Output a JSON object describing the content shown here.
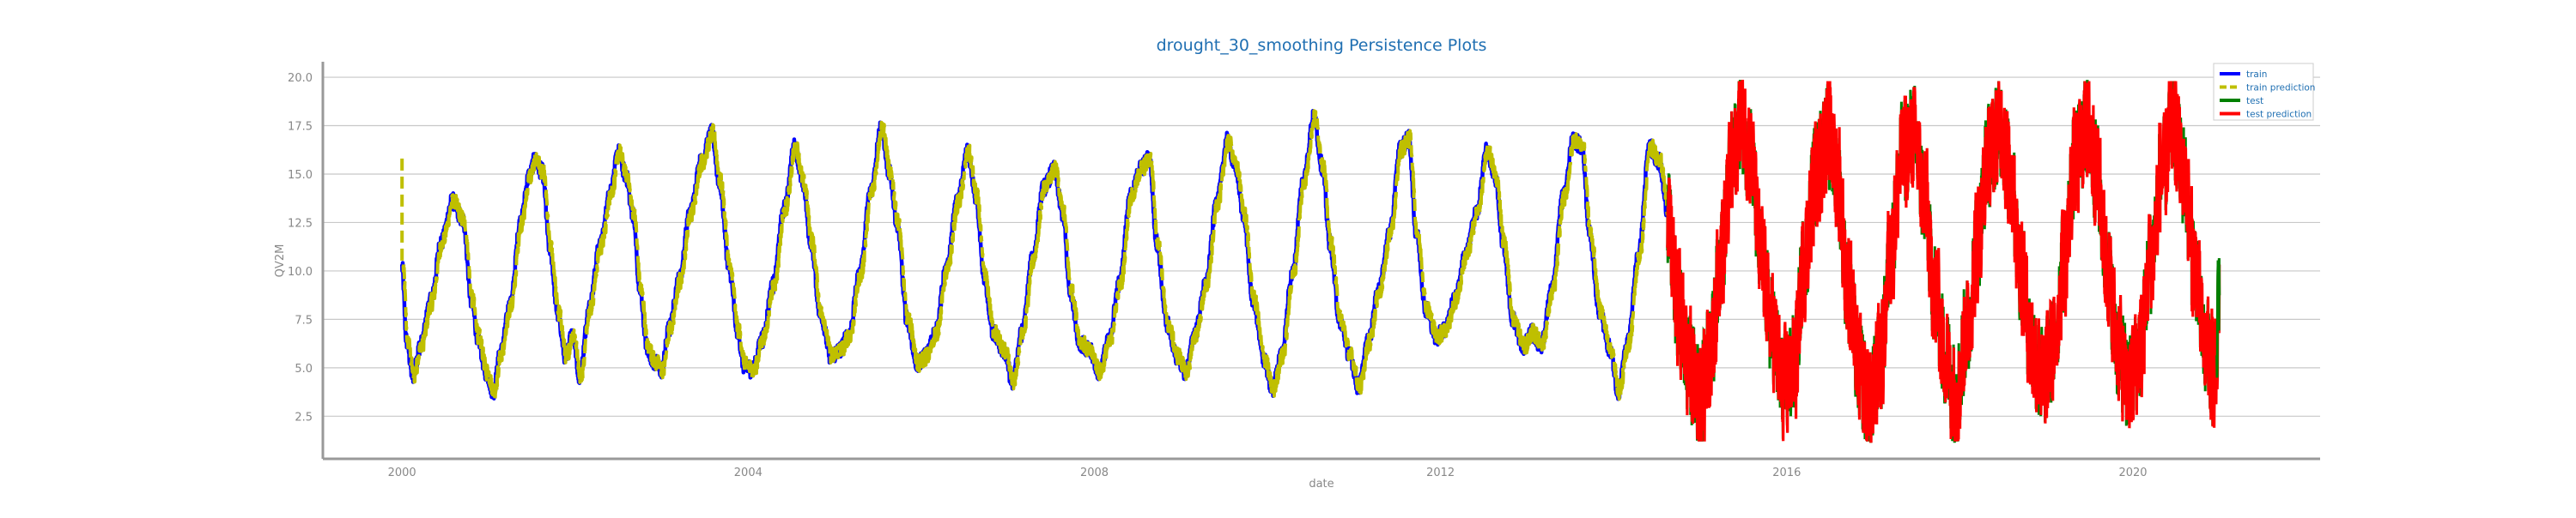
{
  "chart_data": {
    "type": "line",
    "title": "drought_30_smoothing Persistence Plots",
    "xlabel": "date",
    "ylabel": "QV2M",
    "xlim": [
      "1999-02-01",
      "2022-03-01"
    ],
    "ylim": [
      0.3,
      20.8
    ],
    "x_ticks": [
      "2000",
      "2004",
      "2008",
      "2012",
      "2016",
      "2020"
    ],
    "y_ticks": [
      "2.5",
      "5.0",
      "7.5",
      "10.0",
      "12.5",
      "15.0",
      "17.5",
      "20.0"
    ],
    "grid": "horizontal",
    "legend_position": "top-right",
    "train_range": [
      "2000-01-01",
      "2014-08-15"
    ],
    "test_range": [
      "2014-08-15",
      "2020-12-31"
    ],
    "series": [
      {
        "name": "train",
        "color": "#0000ff",
        "style": "solid",
        "points": [
          [
            "2000-01-01",
            10.2
          ],
          [
            "2000-01-20",
            6.4
          ],
          [
            "2000-02-15",
            4.6
          ],
          [
            "2000-03-20",
            6.2
          ],
          [
            "2000-05-01",
            8.4
          ],
          [
            "2000-06-15",
            11.5
          ],
          [
            "2000-08-01",
            13.6
          ],
          [
            "2000-09-15",
            12.6
          ],
          [
            "2000-10-20",
            8.5
          ],
          [
            "2000-11-15",
            6.6
          ],
          [
            "2000-12-20",
            4.8
          ],
          [
            "2001-01-20",
            3.8
          ],
          [
            "2001-02-20",
            5.8
          ],
          [
            "2001-04-01",
            8.2
          ],
          [
            "2001-05-15",
            12.5
          ],
          [
            "2001-06-20",
            14.9
          ],
          [
            "2001-07-15",
            15.7
          ],
          [
            "2001-08-15",
            15.1
          ],
          [
            "2001-09-15",
            11.2
          ],
          [
            "2001-10-20",
            7.8
          ],
          [
            "2001-11-20",
            5.6
          ],
          [
            "2001-12-20",
            6.8
          ],
          [
            "2002-01-20",
            4.6
          ],
          [
            "2002-03-01",
            8.1
          ],
          [
            "2002-04-15",
            11.3
          ],
          [
            "2002-06-01",
            14.2
          ],
          [
            "2002-07-01",
            16.1
          ],
          [
            "2002-08-01",
            15.0
          ],
          [
            "2002-09-01",
            13.0
          ],
          [
            "2002-10-01",
            9.0
          ],
          [
            "2002-11-01",
            6.0
          ],
          [
            "2002-12-01",
            5.3
          ],
          [
            "2003-01-01",
            4.9
          ],
          [
            "2003-02-01",
            7.0
          ],
          [
            "2003-03-15",
            9.5
          ],
          [
            "2003-05-01",
            13.0
          ],
          [
            "2003-06-15",
            15.6
          ],
          [
            "2003-08-01",
            17.1
          ],
          [
            "2003-09-01",
            14.6
          ],
          [
            "2003-10-15",
            10.0
          ],
          [
            "2003-11-15",
            7.0
          ],
          [
            "2003-12-15",
            5.1
          ],
          [
            "2004-01-20",
            4.9
          ],
          [
            "2004-03-01",
            6.5
          ],
          [
            "2004-04-15",
            9.3
          ],
          [
            "2004-06-01",
            13.2
          ],
          [
            "2004-07-15",
            16.4
          ],
          [
            "2004-08-20",
            14.5
          ],
          [
            "2004-09-20",
            11.6
          ],
          [
            "2004-11-01",
            7.8
          ],
          [
            "2004-12-15",
            5.6
          ],
          [
            "2005-01-20",
            5.9
          ],
          [
            "2005-03-01",
            6.7
          ],
          [
            "2005-04-15",
            9.8
          ],
          [
            "2005-06-01",
            14.1
          ],
          [
            "2005-07-15",
            17.4
          ],
          [
            "2005-08-20",
            15.0
          ],
          [
            "2005-09-20",
            12.5
          ],
          [
            "2005-11-01",
            7.5
          ],
          [
            "2005-12-15",
            5.2
          ],
          [
            "2006-01-20",
            5.6
          ],
          [
            "2006-03-01",
            6.8
          ],
          [
            "2006-04-15",
            10.0
          ],
          [
            "2006-06-01",
            13.5
          ],
          [
            "2006-07-15",
            16.1
          ],
          [
            "2006-08-20",
            13.8
          ],
          [
            "2006-09-20",
            9.8
          ],
          [
            "2006-11-01",
            6.8
          ],
          [
            "2006-12-15",
            5.9
          ],
          [
            "2007-01-20",
            4.3
          ],
          [
            "2007-03-01",
            6.8
          ],
          [
            "2007-04-15",
            10.6
          ],
          [
            "2007-06-01",
            14.3
          ],
          [
            "2007-07-15",
            15.2
          ],
          [
            "2007-08-20",
            13.0
          ],
          [
            "2007-09-20",
            9.0
          ],
          [
            "2007-11-01",
            6.3
          ],
          [
            "2007-12-15",
            5.8
          ],
          [
            "2008-01-20",
            4.8
          ],
          [
            "2008-03-01",
            6.3
          ],
          [
            "2008-04-15",
            9.3
          ],
          [
            "2008-06-01",
            13.8
          ],
          [
            "2008-07-15",
            15.3
          ],
          [
            "2008-08-20",
            15.8
          ],
          [
            "2008-09-20",
            11.5
          ],
          [
            "2008-11-01",
            7.3
          ],
          [
            "2008-12-15",
            5.6
          ],
          [
            "2009-01-20",
            4.8
          ],
          [
            "2009-03-01",
            6.8
          ],
          [
            "2009-04-15",
            9.3
          ],
          [
            "2009-06-01",
            13.6
          ],
          [
            "2009-07-15",
            16.7
          ],
          [
            "2009-08-20",
            15.3
          ],
          [
            "2009-09-20",
            13.0
          ],
          [
            "2009-11-01",
            8.5
          ],
          [
            "2009-12-15",
            5.5
          ],
          [
            "2010-01-20",
            3.9
          ],
          [
            "2010-03-01",
            5.6
          ],
          [
            "2010-04-15",
            9.8
          ],
          [
            "2010-06-01",
            14.7
          ],
          [
            "2010-07-15",
            17.9
          ],
          [
            "2010-08-20",
            15.4
          ],
          [
            "2010-09-20",
            11.5
          ],
          [
            "2010-11-01",
            7.5
          ],
          [
            "2010-12-15",
            5.6
          ],
          [
            "2011-01-20",
            4.0
          ],
          [
            "2011-03-01",
            6.3
          ],
          [
            "2011-04-15",
            9.0
          ],
          [
            "2011-06-01",
            12.0
          ],
          [
            "2011-07-15",
            16.3
          ],
          [
            "2011-08-20",
            16.8
          ],
          [
            "2011-09-20",
            12.0
          ],
          [
            "2011-11-01",
            8.0
          ],
          [
            "2011-12-15",
            6.6
          ],
          [
            "2012-01-20",
            7.0
          ],
          [
            "2012-03-01",
            8.5
          ],
          [
            "2012-04-15",
            10.8
          ],
          [
            "2012-06-01",
            13.0
          ],
          [
            "2012-07-15",
            16.2
          ],
          [
            "2012-08-20",
            14.8
          ],
          [
            "2012-09-20",
            11.5
          ],
          [
            "2012-11-01",
            7.5
          ],
          [
            "2012-12-15",
            6.1
          ],
          [
            "2013-01-20",
            6.8
          ],
          [
            "2013-03-01",
            6.2
          ],
          [
            "2013-04-15",
            9.0
          ],
          [
            "2013-06-01",
            13.8
          ],
          [
            "2013-07-15",
            16.8
          ],
          [
            "2013-08-20",
            16.4
          ],
          [
            "2013-09-20",
            12.0
          ],
          [
            "2013-11-01",
            8.0
          ],
          [
            "2013-12-15",
            6.0
          ],
          [
            "2014-01-20",
            3.8
          ],
          [
            "2014-03-01",
            6.3
          ],
          [
            "2014-04-15",
            10.8
          ],
          [
            "2014-06-01",
            16.4
          ],
          [
            "2014-07-10",
            15.7
          ],
          [
            "2014-08-15",
            13.2
          ]
        ]
      },
      {
        "name": "train prediction",
        "color": "#bfbf00",
        "style": "dashed",
        "lag_days": 5,
        "initial_value": 15.8
      },
      {
        "name": "test",
        "color": "#008000",
        "style": "solid",
        "points": [
          [
            "2014-08-15",
            12.5
          ],
          [
            "2014-10-01",
            8.0
          ],
          [
            "2014-11-15",
            5.0
          ],
          [
            "2015-01-01",
            3.5
          ],
          [
            "2015-02-15",
            6.0
          ],
          [
            "2015-04-01",
            11.0
          ],
          [
            "2015-05-15",
            15.5
          ],
          [
            "2015-06-20",
            18.0
          ],
          [
            "2015-08-01",
            16.0
          ],
          [
            "2015-09-15",
            10.5
          ],
          [
            "2015-11-01",
            7.0
          ],
          [
            "2015-12-15",
            4.0
          ],
          [
            "2016-02-01",
            5.0
          ],
          [
            "2016-03-15",
            10.5
          ],
          [
            "2016-05-01",
            15.0
          ],
          [
            "2016-06-20",
            17.0
          ],
          [
            "2016-08-01",
            15.0
          ],
          [
            "2016-09-15",
            9.0
          ],
          [
            "2016-11-01",
            5.0
          ],
          [
            "2016-12-15",
            3.0
          ],
          [
            "2017-02-01",
            5.5
          ],
          [
            "2017-03-15",
            11.0
          ],
          [
            "2017-05-01",
            16.0
          ],
          [
            "2017-06-20",
            17.0
          ],
          [
            "2017-08-01",
            14.0
          ],
          [
            "2017-09-15",
            9.0
          ],
          [
            "2017-11-01",
            5.5
          ],
          [
            "2017-12-15",
            3.5
          ],
          [
            "2018-02-01",
            7.0
          ],
          [
            "2018-03-15",
            11.5
          ],
          [
            "2018-05-01",
            16.0
          ],
          [
            "2018-06-20",
            17.5
          ],
          [
            "2018-08-01",
            15.0
          ],
          [
            "2018-09-15",
            10.0
          ],
          [
            "2018-11-01",
            6.0
          ],
          [
            "2018-12-15",
            4.5
          ],
          [
            "2019-02-01",
            6.0
          ],
          [
            "2019-03-15",
            10.5
          ],
          [
            "2019-05-01",
            15.5
          ],
          [
            "2019-06-20",
            17.5
          ],
          [
            "2019-08-01",
            15.0
          ],
          [
            "2019-09-15",
            10.0
          ],
          [
            "2019-11-01",
            6.0
          ],
          [
            "2019-12-15",
            4.0
          ],
          [
            "2020-02-01",
            6.0
          ],
          [
            "2020-03-15",
            10.5
          ],
          [
            "2020-05-01",
            15.0
          ],
          [
            "2020-06-20",
            17.5
          ],
          [
            "2020-08-01",
            15.0
          ],
          [
            "2020-09-15",
            10.5
          ],
          [
            "2020-11-01",
            6.0
          ],
          [
            "2020-12-15",
            4.5
          ],
          [
            "2020-12-31",
            9.8
          ]
        ]
      },
      {
        "name": "test prediction",
        "color": "#ff0000",
        "style": "solid",
        "noise_amplitude": 2.8
      }
    ]
  }
}
